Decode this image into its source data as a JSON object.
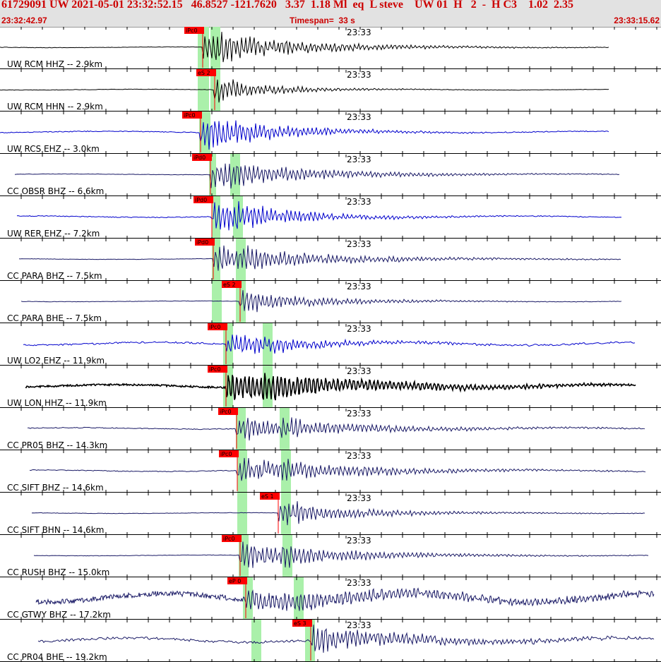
{
  "header": {
    "title": "61729091 UW 2021-05-01 23:32:52.15   46.8527 -121.7620   3.37  1.18 Ml  eq  L steve    UW 01  H   2  -  H C3    1.02  2.35",
    "start_time": "23:32:42.97",
    "timespan": "Timespan=  33 s",
    "end_time": "23:33:15.62"
  },
  "minute_label": "23:33",
  "colors": {
    "black": "#000000",
    "blue": "#0000cc",
    "navy": "#1a1a66",
    "pick": "#ff0000",
    "window": "#aaf0aa"
  },
  "channels": [
    {
      "label": "UW RCM HHZ -- 2.9km",
      "pick": "iPc0",
      "color": "black",
      "ws": [
        280,
        296
      ],
      "we": [
        298,
        312
      ],
      "onset": 287,
      "end": 862,
      "amp": 26,
      "noise": 0.5,
      "decay": 140,
      "sp": 2
    },
    {
      "label": "UW RCM HHN -- 2.9km",
      "pick": "eS 2",
      "color": "black",
      "ws": [
        280,
        296
      ],
      "we": [
        298,
        312
      ],
      "onset": 304,
      "end": 862,
      "amp": 18,
      "noise": 0.5,
      "decay": 90,
      "sp": 2
    },
    {
      "label": "UW RCS EHZ -- 3.0km",
      "pick": "iPc0",
      "color": "blue",
      "ws": [
        282,
        298
      ],
      "we": null,
      "onset": 284,
      "end": 862,
      "amp": 28,
      "noise": 1,
      "decay": 110,
      "sp": 2
    },
    {
      "label": "CC OBSR BHZ -- 6.6km",
      "pick": "iPd0",
      "color": "navy",
      "ws": [
        296,
        306
      ],
      "we": [
        326,
        340
      ],
      "onset": 298,
      "end": 878,
      "amp": 22,
      "noise": 0.5,
      "decay": 150,
      "sp": 2
    },
    {
      "label": "UW RER EHZ -- 7.2km",
      "pick": "iPd0",
      "color": "blue",
      "ws": [
        300,
        312
      ],
      "we": [
        330,
        344
      ],
      "onset": 300,
      "end": 880,
      "amp": 27,
      "noise": 1,
      "decay": 110,
      "sp": 2
    },
    {
      "label": "CC PARA BHZ -- 7.5km",
      "pick": "iPd0",
      "color": "navy",
      "ws": [
        300,
        312
      ],
      "we": [
        334,
        348
      ],
      "onset": 302,
      "end": 880,
      "amp": 22,
      "noise": 0.5,
      "decay": 160,
      "sp": 2
    },
    {
      "label": "CC PARA BHE -- 7.5km",
      "pick": "eS 2",
      "color": "navy",
      "ws": [
        300,
        314
      ],
      "we": [
        334,
        348
      ],
      "onset": 340,
      "end": 880,
      "amp": 16,
      "noise": 0.5,
      "decay": 120,
      "sp": 2
    },
    {
      "label": "UW LO2 EHZ -- 11.9km",
      "pick": "iPc0",
      "color": "blue",
      "ws": [
        316,
        330
      ],
      "we": [
        372,
        386
      ],
      "onset": 320,
      "end": 900,
      "amp": 18,
      "noise": 2,
      "decay": 130,
      "sp": 2
    },
    {
      "label": "UW LON HHZ -- 11.9km",
      "pick": "iPc0",
      "color": "black",
      "ws": [
        316,
        330
      ],
      "we": [
        372,
        386
      ],
      "onset": 320,
      "end": 900,
      "amp": 22,
      "noise": 2,
      "decay": 200,
      "sp": 1
    },
    {
      "label": "CC PR05 BHZ -- 14.3km",
      "pick": "iPc0",
      "color": "navy",
      "ws": [
        334,
        348
      ],
      "we": [
        396,
        410
      ],
      "onset": 335,
      "end": 914,
      "amp": 20,
      "noise": 1,
      "decay": 170,
      "sp": 2
    },
    {
      "label": "CC SIFT BHZ -- 14.6km",
      "pick": "iPc0",
      "color": "navy",
      "ws": [
        336,
        350
      ],
      "we": [
        398,
        412
      ],
      "onset": 336,
      "end": 914,
      "amp": 20,
      "noise": 1,
      "decay": 170,
      "sp": 2
    },
    {
      "label": "CC SIFT BHN -- 14.6km",
      "pick": "eS 1",
      "color": "navy",
      "ws": [
        336,
        350
      ],
      "we": [
        398,
        412
      ],
      "onset": 394,
      "end": 914,
      "amp": 17,
      "noise": 0.5,
      "decay": 130,
      "sp": 2
    },
    {
      "label": "CC RUSH BHZ -- 15.0km",
      "pick": "iPc0",
      "color": "navy",
      "ws": [
        338,
        352
      ],
      "we": [
        400,
        414
      ],
      "onset": 340,
      "end": 918,
      "amp": 22,
      "noise": 0.5,
      "decay": 150,
      "sp": 2
    },
    {
      "label": "CC GTWY BHZ -- 17.2km",
      "pick": "eP 0",
      "color": "navy",
      "ws": [
        344,
        358
      ],
      "we": [
        416,
        430
      ],
      "onset": 348,
      "end": 926,
      "amp": 14,
      "noise": 6,
      "decay": 300,
      "sp": 1
    },
    {
      "label": "CC PR04 BHE -- 19.2km",
      "pick": "eS 3",
      "color": "navy",
      "ws": [
        356,
        370
      ],
      "we": [
        432,
        446
      ],
      "onset": 440,
      "end": 926,
      "amp": 20,
      "noise": 3,
      "decay": 170,
      "sp": 2
    }
  ]
}
